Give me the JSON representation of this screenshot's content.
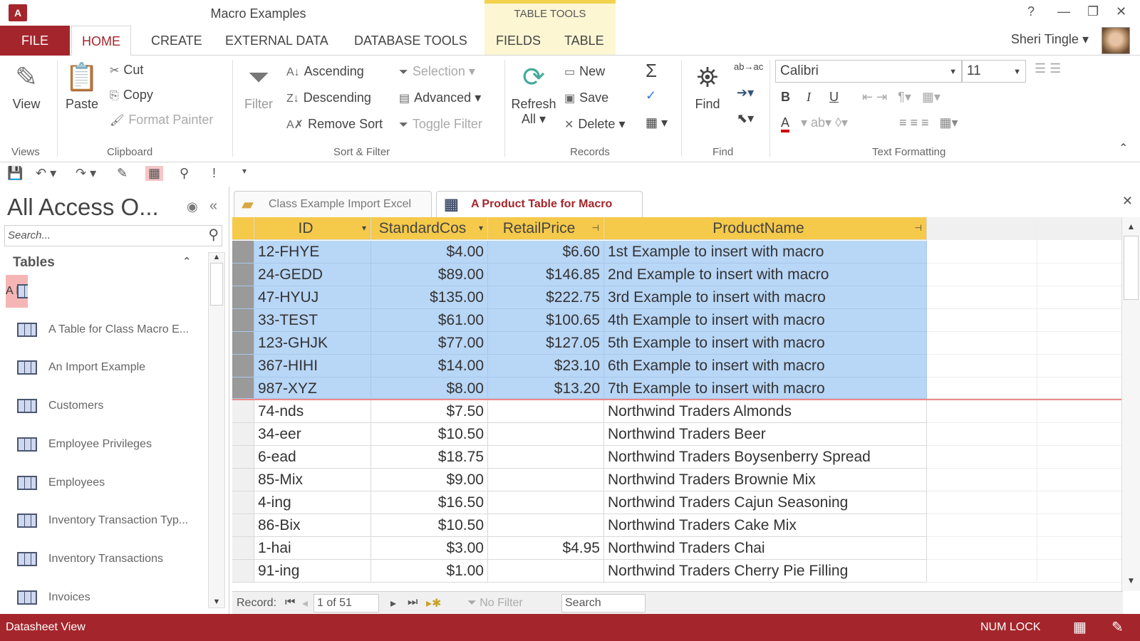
{
  "window": {
    "title": "Macro Examples",
    "context_tab": "TABLE TOOLS",
    "help": "?",
    "minimize": "—",
    "restore": "❐",
    "close": "✕",
    "user": "Sheri Tingle"
  },
  "tabs": [
    "FILE",
    "HOME",
    "CREATE",
    "EXTERNAL DATA",
    "DATABASE TOOLS",
    "FIELDS",
    "TABLE"
  ],
  "ribbon": {
    "views": {
      "view": "View",
      "label": "Views"
    },
    "clipboard": {
      "paste": "Paste",
      "cut": "Cut",
      "copy": "Copy",
      "format_painter": "Format Painter",
      "label": "Clipboard"
    },
    "sort_filter": {
      "filter": "Filter",
      "ascending": "Ascending",
      "descending": "Descending",
      "remove_sort": "Remove Sort",
      "selection": "Selection",
      "advanced": "Advanced",
      "toggle_filter": "Toggle Filter",
      "label": "Sort & Filter"
    },
    "records": {
      "refresh": "Refresh",
      "refresh2": "All",
      "new": "New",
      "save": "Save",
      "delete": "Delete",
      "label": "Records"
    },
    "find": {
      "find": "Find",
      "label": "Find"
    },
    "text_formatting": {
      "font": "Calibri",
      "size": "11",
      "bold": "B",
      "italic": "I",
      "underline": "U",
      "label": "Text Formatting"
    }
  },
  "nav": {
    "title": "All Access O...",
    "search_placeholder": "Search...",
    "section": "Tables",
    "items": [
      "A Product Table for Macro",
      "A Table for Class Macro E...",
      "An Import Example",
      "Customers",
      "Employee Privileges",
      "Employees",
      "Inventory Transaction Typ...",
      "Inventory Transactions",
      "Invoices"
    ],
    "selected_index": 0
  },
  "doc_tabs": [
    "Class Example Import Excel",
    "A Product Table for Macro"
  ],
  "table": {
    "columns": [
      "ID",
      "StandardCos",
      "RetailPrice",
      "ProductName"
    ],
    "rows": [
      [
        "12-FHYE",
        "$4.00",
        "$6.60",
        "1st Example to insert with macro"
      ],
      [
        "24-GEDD",
        "$89.00",
        "$146.85",
        "2nd Example to insert with macro"
      ],
      [
        "47-HYUJ",
        "$135.00",
        "$222.75",
        "3rd Example to insert with macro"
      ],
      [
        "33-TEST",
        "$61.00",
        "$100.65",
        "4th Example to insert with macro"
      ],
      [
        "123-GHJK",
        "$77.00",
        "$127.05",
        "5th Example to insert with macro"
      ],
      [
        "367-HIHI",
        "$14.00",
        "$23.10",
        "6th Example to insert with macro"
      ],
      [
        "987-XYZ",
        "$8.00",
        "$13.20",
        "7th Example to insert with macro"
      ],
      [
        "74-nds",
        "$7.50",
        "",
        "Northwind Traders Almonds"
      ],
      [
        "34-eer",
        "$10.50",
        "",
        "Northwind Traders Beer"
      ],
      [
        "6-ead",
        "$18.75",
        "",
        "Northwind Traders Boysenberry Spread"
      ],
      [
        "85-Mix",
        "$9.00",
        "",
        "Northwind Traders Brownie Mix"
      ],
      [
        "4-ing",
        "$16.50",
        "",
        "Northwind Traders Cajun Seasoning"
      ],
      [
        "86-Bix",
        "$10.50",
        "",
        "Northwind Traders Cake Mix"
      ],
      [
        "1-hai",
        "$3.00",
        "$4.95",
        "Northwind Traders Chai"
      ],
      [
        "91-ing",
        "$1.00",
        "",
        "Northwind Traders Cherry Pie Filling"
      ]
    ],
    "selected_rows": 7
  },
  "record_nav": {
    "label": "Record:",
    "position": "1 of 51",
    "filter": "No Filter",
    "search": "Search"
  },
  "status": {
    "view": "Datasheet View",
    "numlock": "NUM LOCK"
  },
  "colors": {
    "accent": "#a4262c",
    "header": "#f5c94a",
    "selection": "#b8d6f6",
    "nav_selected": "#f5b5b5"
  }
}
